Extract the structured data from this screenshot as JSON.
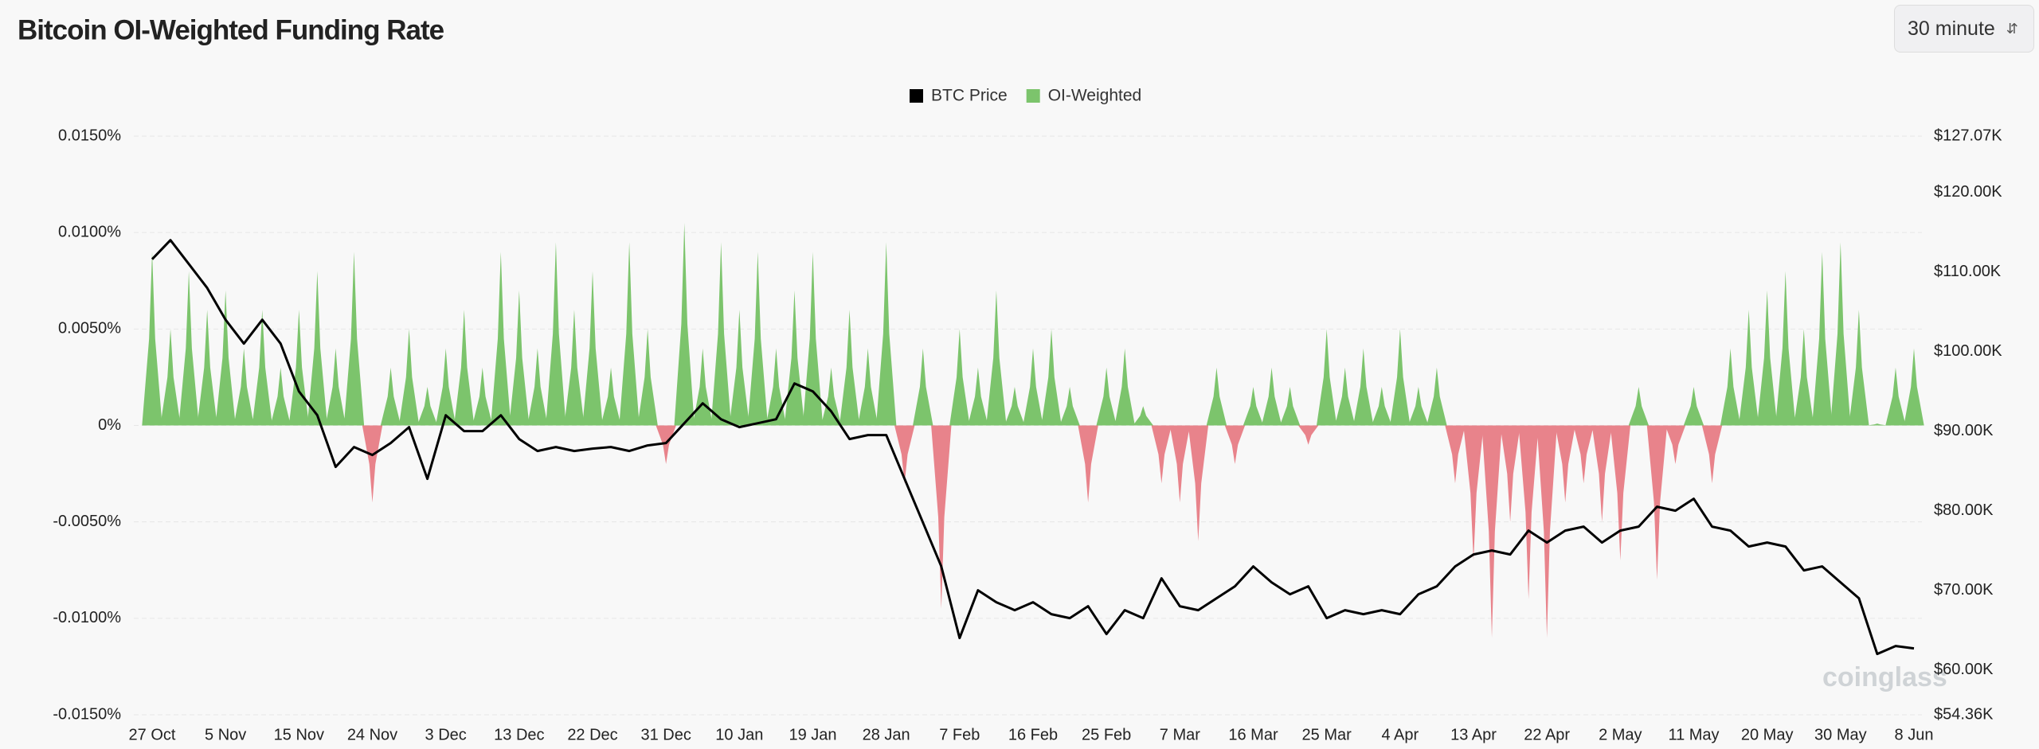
{
  "chart_data": {
    "type": "combo",
    "title": "Bitcoin OI-Weighted Funding Rate",
    "control": "30 minute",
    "watermark": "coinglass",
    "categories": [
      "27 Oct",
      null,
      null,
      null,
      "5 Nov",
      null,
      null,
      null,
      "15 Nov",
      null,
      null,
      null,
      "24 Nov",
      null,
      null,
      null,
      "3 Dec",
      null,
      null,
      null,
      "13 Dec",
      null,
      null,
      null,
      "22 Dec",
      null,
      null,
      null,
      "31 Dec",
      null,
      null,
      null,
      "10 Jan",
      null,
      null,
      null,
      "19 Jan",
      null,
      null,
      null,
      "28 Jan",
      null,
      null,
      null,
      "7 Feb",
      null,
      null,
      null,
      "16 Feb",
      null,
      null,
      null,
      "25 Feb",
      null,
      null,
      null,
      "7 Mar",
      null,
      null,
      null,
      "16 Mar",
      null,
      null,
      null,
      "25 Mar",
      null,
      null,
      null,
      "4 Apr",
      null,
      null,
      null,
      "13 Apr",
      null,
      null,
      null,
      "22 Apr",
      null,
      null,
      null,
      "2 May",
      null,
      null,
      null,
      "11 May",
      null,
      null,
      null,
      "20 May",
      null,
      null,
      null,
      "30 May",
      null,
      null,
      null,
      "8 Jun"
    ],
    "series": [
      {
        "name": "BTC Price",
        "type": "line",
        "axis": "y2",
        "color": "#000000",
        "values": [
          111600,
          114000,
          111000,
          108000,
          104000,
          101000,
          104000,
          101000,
          95000,
          92000,
          85500,
          88000,
          87000,
          88500,
          90500,
          84000,
          92000,
          90000,
          90000,
          92000,
          89000,
          87500,
          88000,
          87500,
          87800,
          88000,
          87500,
          88200,
          88500,
          91000,
          93500,
          91500,
          90500,
          91000,
          91500,
          96000,
          95000,
          92500,
          89000,
          89500,
          89500,
          84000,
          78500,
          73000,
          64000,
          70000,
          68500,
          67500,
          68500,
          67000,
          66500,
          68000,
          64500,
          67500,
          66500,
          71500,
          68000,
          67500,
          69000,
          70500,
          73000,
          71000,
          69500,
          70500,
          66500,
          67500,
          67000,
          67500,
          67000,
          69500,
          70500,
          73000,
          74500,
          75000,
          74500,
          77500,
          76000,
          77500,
          78000,
          76000,
          77500,
          78000,
          80500,
          80000,
          81500,
          78000,
          77500,
          75500,
          76000,
          75500,
          72500,
          73000,
          71000,
          69000,
          62000,
          63000,
          62700
        ]
      },
      {
        "name": "OI-Weighted",
        "type": "area",
        "color": "#7cc46c",
        "negative_color": "#e8838b",
        "values": [
          0.009,
          0.005,
          0.008,
          0.006,
          0.007,
          0.004,
          0.006,
          0.003,
          0.006,
          0.008,
          0.004,
          0.009,
          -0.004,
          0.003,
          0.005,
          0.002,
          0.004,
          0.006,
          0.003,
          0.009,
          0.007,
          0.004,
          0.0095,
          0.006,
          0.008,
          0.003,
          0.0095,
          0.005,
          -0.002,
          0.0105,
          0.004,
          0.0095,
          0.006,
          0.009,
          0.004,
          0.007,
          0.009,
          0.003,
          0.006,
          0.004,
          0.0095,
          -0.003,
          0.004,
          -0.0095,
          0.005,
          0.003,
          0.007,
          0.002,
          0.004,
          0.005,
          0.002,
          -0.004,
          0.003,
          0.004,
          0.001,
          -0.003,
          -0.004,
          -0.006,
          0.003,
          -0.002,
          0.002,
          0.003,
          0.002,
          -0.001,
          0.005,
          0.003,
          0.004,
          0.002,
          0.005,
          0.002,
          0.003,
          -0.003,
          -0.007,
          -0.011,
          -0.005,
          -0.009,
          -0.011,
          -0.004,
          -0.003,
          -0.005,
          -0.007,
          0.002,
          -0.008,
          -0.002,
          0.002,
          -0.003,
          0.004,
          0.006,
          0.007,
          0.008,
          0.005,
          0.009,
          0.0095,
          0.006,
          0.0001,
          0.003,
          0.004
        ]
      }
    ],
    "ylim": [
      -0.015,
      0.015
    ],
    "yticks": [
      {
        "value": -0.015,
        "label": "-0.0150%"
      },
      {
        "value": -0.01,
        "label": "-0.0100%"
      },
      {
        "value": -0.005,
        "label": "-0.0050%"
      },
      {
        "value": 0,
        "label": "0%"
      },
      {
        "value": 0.005,
        "label": "0.0050%"
      },
      {
        "value": 0.01,
        "label": "0.0100%"
      },
      {
        "value": 0.015,
        "label": "0.0150%"
      }
    ],
    "y2lim": [
      54360,
      127070
    ],
    "y2ticks": [
      {
        "value": 54360,
        "label": "$54.36K"
      },
      {
        "value": 60000,
        "label": "$60.00K"
      },
      {
        "value": 70000,
        "label": "$70.00K"
      },
      {
        "value": 80000,
        "label": "$80.00K"
      },
      {
        "value": 90000,
        "label": "$90.00K"
      },
      {
        "value": 100000,
        "label": "$100.00K"
      },
      {
        "value": 110000,
        "label": "$110.00K"
      },
      {
        "value": 120000,
        "label": "$120.00K"
      },
      {
        "value": 127070,
        "label": "$127.07K"
      }
    ],
    "grid": true
  }
}
